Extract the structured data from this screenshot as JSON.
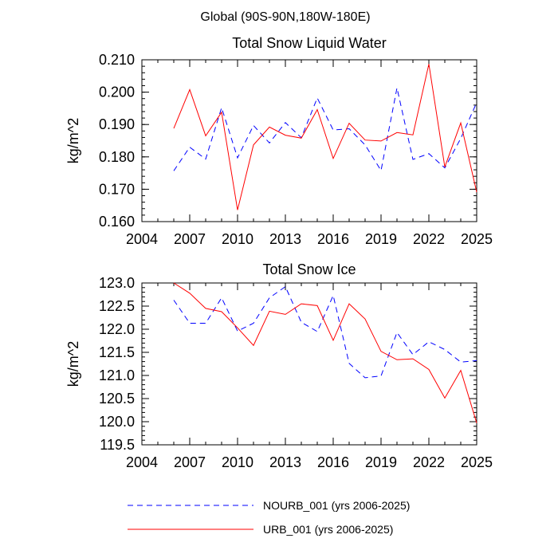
{
  "page_title": "Global (90S-90N,180W-180E)",
  "colors": {
    "nourb": "#0000ff",
    "urb": "#ff0000",
    "axes": "#000000"
  },
  "legend": [
    {
      "series": "NOURB_001",
      "label": "NOURB_001 (yrs 2006-2025)",
      "style": "dashed"
    },
    {
      "series": "URB_001",
      "label": "URB_001 (yrs 2006-2025)",
      "style": "solid"
    }
  ],
  "chart_data": [
    {
      "type": "line",
      "title": "Total Snow Liquid Water",
      "xlabel": "",
      "ylabel": "kg/m^2",
      "xlim": [
        2004,
        2025
      ],
      "ylim": [
        0.16,
        0.21
      ],
      "x_ticks": [
        2004,
        2007,
        2010,
        2013,
        2016,
        2019,
        2022,
        2025
      ],
      "y_ticks": [
        "0.160",
        "0.170",
        "0.180",
        "0.190",
        "0.200",
        "0.210"
      ],
      "x": [
        2006,
        2007,
        2008,
        2009,
        2010,
        2011,
        2012,
        2013,
        2014,
        2015,
        2016,
        2017,
        2018,
        2019,
        2020,
        2021,
        2022,
        2023,
        2024,
        2025
      ],
      "series": [
        {
          "name": "NOURB_001",
          "style": "dashed",
          "values": [
            0.1757,
            0.183,
            0.1793,
            0.1952,
            0.1797,
            0.1897,
            0.1843,
            0.1906,
            0.1859,
            0.1982,
            0.1883,
            0.1887,
            0.1837,
            0.1758,
            0.2013,
            0.1792,
            0.181,
            0.1766,
            0.1857,
            0.1968
          ]
        },
        {
          "name": "URB_001",
          "style": "solid",
          "values": [
            0.1888,
            0.2008,
            0.1865,
            0.1938,
            0.1636,
            0.1837,
            0.1892,
            0.1867,
            0.1858,
            0.1946,
            0.1795,
            0.1904,
            0.1852,
            0.1849,
            0.1875,
            0.1868,
            0.2087,
            0.1769,
            0.1905,
            0.1691
          ]
        }
      ]
    },
    {
      "type": "line",
      "title": "Total Snow Ice",
      "xlabel": "",
      "ylabel": "kg/m^2",
      "xlim": [
        2004,
        2025
      ],
      "ylim": [
        119.5,
        123.0
      ],
      "x_ticks": [
        2004,
        2007,
        2010,
        2013,
        2016,
        2019,
        2022,
        2025
      ],
      "y_ticks": [
        "119.5",
        "120.0",
        "120.5",
        "121.0",
        "121.5",
        "122.0",
        "122.5",
        "123.0"
      ],
      "x": [
        2006,
        2007,
        2008,
        2009,
        2010,
        2011,
        2012,
        2013,
        2014,
        2015,
        2016,
        2017,
        2018,
        2019,
        2020,
        2021,
        2022,
        2023,
        2024,
        2025
      ],
      "series": [
        {
          "name": "NOURB_001",
          "style": "dashed",
          "values": [
            122.63,
            122.13,
            122.13,
            122.68,
            121.96,
            122.13,
            122.68,
            122.92,
            122.15,
            121.95,
            122.73,
            121.26,
            120.95,
            120.99,
            121.93,
            121.45,
            121.73,
            121.56,
            121.29,
            121.32
          ]
        },
        {
          "name": "URB_001",
          "style": "solid",
          "values": [
            123.0,
            122.78,
            122.45,
            122.38,
            122.03,
            121.65,
            122.39,
            122.32,
            122.55,
            122.51,
            121.76,
            122.55,
            122.22,
            121.52,
            121.34,
            121.36,
            121.13,
            120.51,
            121.11,
            119.97
          ]
        }
      ]
    }
  ]
}
